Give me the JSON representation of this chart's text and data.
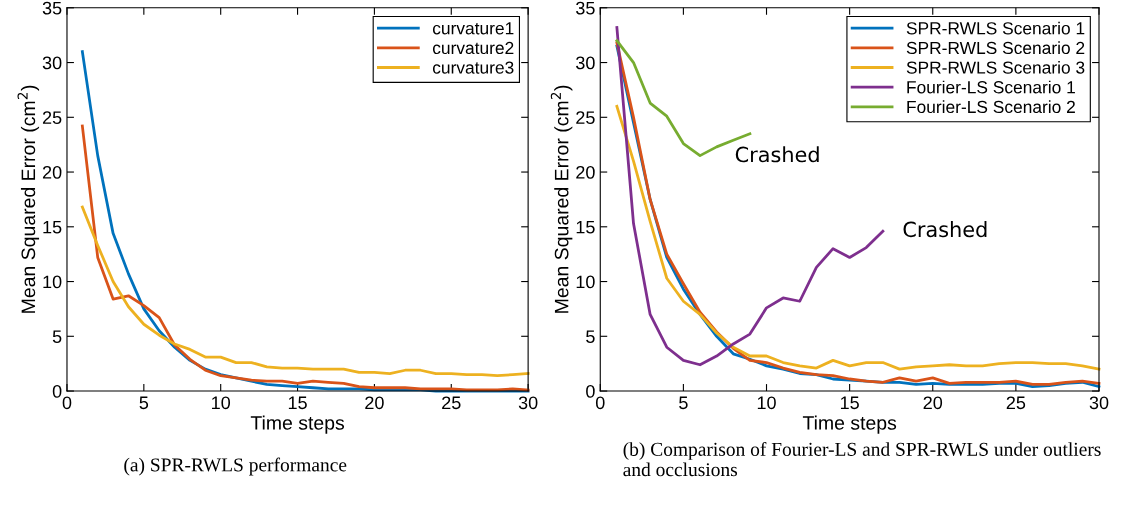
{
  "chart_data": [
    {
      "type": "line",
      "xlabel": "Time steps",
      "ylabel": "Mean Squared Error (cm$^{2}$)",
      "x": [
        1,
        2,
        3,
        4,
        5,
        6,
        7,
        8,
        9,
        10,
        11,
        12,
        13,
        14,
        15,
        16,
        17,
        18,
        19,
        20,
        21,
        22,
        23,
        24,
        25,
        26,
        27,
        28,
        29,
        30
      ],
      "xlim": [
        0,
        30
      ],
      "xticks": [
        0,
        5,
        10,
        15,
        20,
        25,
        30
      ],
      "ylim": [
        0,
        35
      ],
      "yticks": [
        0,
        5,
        10,
        15,
        20,
        25,
        30,
        35
      ],
      "grid": false,
      "legend": "top right",
      "line_style": "solid",
      "marker": "none",
      "series": [
        {
          "name": "curvature1",
          "color": "#0072bd",
          "values": [
            31,
            21.5,
            14.4,
            10.7,
            7.5,
            5.5,
            4.0,
            2.8,
            2.0,
            1.5,
            1.2,
            0.9,
            0.6,
            0.5,
            0.4,
            0.3,
            0.2,
            0.2,
            0.2,
            0.1,
            0.1,
            0.1,
            0.1,
            0,
            0,
            0,
            0,
            0,
            0,
            0
          ]
        },
        {
          "name": "curvature2",
          "color": "#d95319",
          "values": [
            24.2,
            12.2,
            8.4,
            8.7,
            7.8,
            6.7,
            4.2,
            2.9,
            1.9,
            1.4,
            1.2,
            1.0,
            0.9,
            0.9,
            0.7,
            0.9,
            0.8,
            0.7,
            0.4,
            0.3,
            0.3,
            0.3,
            0.2,
            0.2,
            0.2,
            0.1,
            0.1,
            0.1,
            0.2,
            0.1
          ]
        },
        {
          "name": "curvature3",
          "color": "#edb120",
          "values": [
            16.8,
            13.3,
            10.0,
            7.7,
            6.1,
            5.1,
            4.3,
            3.8,
            3.1,
            3.1,
            2.6,
            2.6,
            2.2,
            2.1,
            2.1,
            2.0,
            2.0,
            2.0,
            1.7,
            1.7,
            1.6,
            1.9,
            1.9,
            1.6,
            1.6,
            1.5,
            1.5,
            1.4,
            1.5,
            1.6
          ]
        }
      ],
      "annotations": [
        "(a) SPR-RWLS performance"
      ]
    },
    {
      "type": "line",
      "xlabel": "Time steps",
      "ylabel": "Mean Squared Error (cm$^{2}$)",
      "x": [
        1,
        2,
        3,
        4,
        5,
        6,
        7,
        8,
        9,
        10,
        11,
        12,
        13,
        14,
        15,
        16,
        17,
        18,
        19,
        20,
        21,
        22,
        23,
        24,
        25,
        26,
        27,
        28,
        29,
        30
      ],
      "xlim": [
        0,
        30
      ],
      "xticks": [
        0,
        5,
        10,
        15,
        20,
        25,
        30
      ],
      "ylim": [
        0,
        35
      ],
      "yticks": [
        0,
        5,
        10,
        15,
        20,
        25,
        30,
        35
      ],
      "grid": false,
      "legend": "top right",
      "line_style": "solid",
      "marker": "none",
      "series": [
        {
          "name": "SPR-RWLS Scenario 1",
          "color": "#0072bd",
          "values": [
            31.5,
            24.5,
            17.5,
            12.2,
            9.3,
            7.0,
            5.0,
            3.4,
            2.9,
            2.3,
            2.0,
            1.6,
            1.5,
            1.1,
            1.0,
            0.9,
            0.8,
            0.8,
            0.6,
            0.7,
            0.6,
            0.6,
            0.6,
            0.7,
            0.7,
            0.4,
            0.5,
            0.7,
            0.8,
            0.4
          ]
        },
        {
          "name": "SPR-RWLS Scenario 2",
          "color": "#d95319",
          "values": [
            31.8,
            25.0,
            17.5,
            12.5,
            9.8,
            7.2,
            5.4,
            3.9,
            2.8,
            2.6,
            2.1,
            1.7,
            1.5,
            1.4,
            1.1,
            0.9,
            0.8,
            1.2,
            0.9,
            1.2,
            0.7,
            0.8,
            0.8,
            0.8,
            0.9,
            0.6,
            0.6,
            0.8,
            0.9,
            0.7
          ]
        },
        {
          "name": "SPR-RWLS Scenario 3",
          "color": "#edb120",
          "values": [
            26,
            21,
            15.5,
            10.3,
            8.2,
            7.0,
            5.3,
            4.0,
            3.2,
            3.2,
            2.6,
            2.3,
            2.1,
            2.8,
            2.3,
            2.6,
            2.6,
            2.0,
            2.2,
            2.3,
            2.4,
            2.3,
            2.3,
            2.5,
            2.6,
            2.6,
            2.5,
            2.5,
            2.3,
            2.0
          ]
        },
        {
          "name": "Fourier-LS Scenario 1",
          "color": "#7e2f8e",
          "x": [
            1,
            2,
            3,
            4,
            5,
            6,
            7,
            8,
            9,
            10,
            11,
            12,
            13,
            14,
            15,
            16,
            17
          ],
          "values": [
            33.2,
            15.3,
            7.0,
            4.0,
            2.8,
            2.4,
            3.2,
            4.3,
            5.2,
            7.6,
            8.5,
            8.2,
            11.3,
            13.0,
            12.2,
            13.1,
            14.6
          ]
        },
        {
          "name": "Fourier-LS Scenario 2",
          "color": "#77ac30",
          "x": [
            1,
            2,
            3,
            4,
            5,
            6,
            7,
            8,
            9
          ],
          "values": [
            32,
            30,
            26.3,
            25.1,
            22.6,
            21.5,
            22.3,
            22.9,
            23.5
          ]
        }
      ],
      "annotations": [
        {
          "text": "Crashed",
          "x": 9,
          "y": 23.5
        },
        {
          "text": "Crashed",
          "x": 17,
          "y": 14.6
        },
        "(b) Comparison of Fourier-LS and SPR-RWLS under outliers and occlusions"
      ]
    }
  ]
}
